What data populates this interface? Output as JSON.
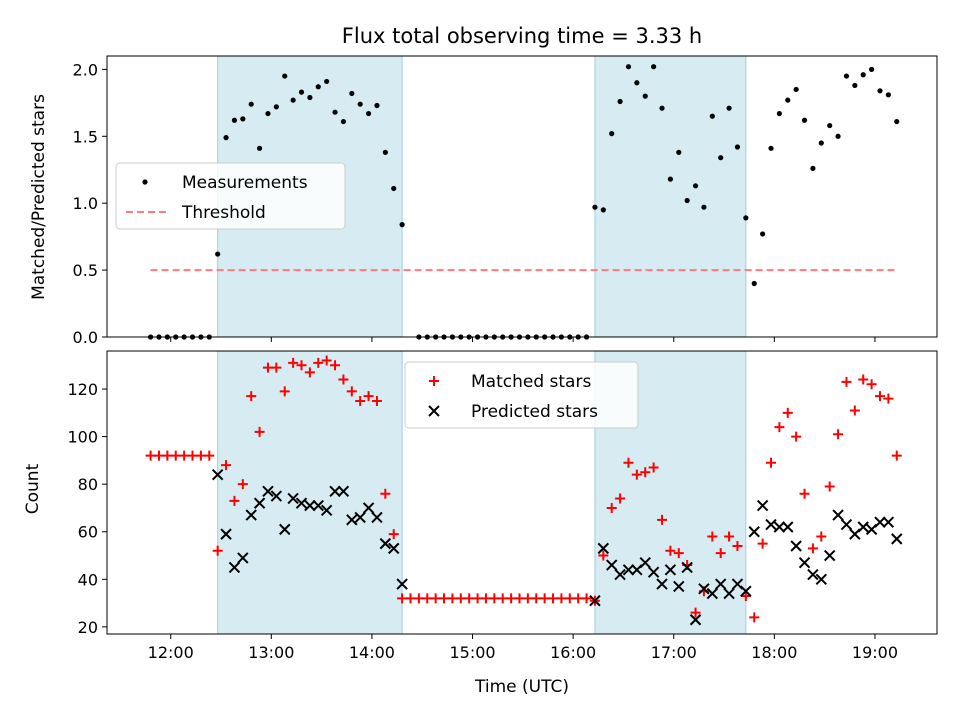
{
  "chart_data": [
    {
      "type": "scatter",
      "title": "Flux total observing time = 3.33 h",
      "xlabel": "",
      "ylabel": "Matched/Predicted stars",
      "xlim": [
        "11:22",
        "19:37"
      ],
      "ylim": [
        0,
        2.1
      ],
      "yticks": [
        "0.0",
        "0.5",
        "1.0",
        "1.5",
        "2.0"
      ],
      "grid": false,
      "legend_position": "center-left",
      "shaded_intervals": [
        [
          "12:28",
          "14:18"
        ],
        [
          "16:13",
          "17:43"
        ]
      ],
      "series": [
        {
          "name": "Measurements",
          "marker": "dot",
          "color": "#000000",
          "points": [
            [
              "11:48",
              0.0
            ],
            [
              "11:53",
              0.0
            ],
            [
              "11:58",
              0.0
            ],
            [
              "12:03",
              0.0
            ],
            [
              "12:08",
              0.0
            ],
            [
              "12:13",
              0.0
            ],
            [
              "12:18",
              0.0
            ],
            [
              "12:23",
              0.0
            ],
            [
              "12:28",
              0.62
            ],
            [
              "12:33",
              1.49
            ],
            [
              "12:38",
              1.62
            ],
            [
              "12:43",
              1.63
            ],
            [
              "12:48",
              1.74
            ],
            [
              "12:53",
              1.41
            ],
            [
              "12:58",
              1.67
            ],
            [
              "13:03",
              1.72
            ],
            [
              "13:08",
              1.95
            ],
            [
              "13:13",
              1.77
            ],
            [
              "13:18",
              1.83
            ],
            [
              "13:23",
              1.79
            ],
            [
              "13:28",
              1.87
            ],
            [
              "13:33",
              1.91
            ],
            [
              "13:38",
              1.68
            ],
            [
              "13:43",
              1.61
            ],
            [
              "13:48",
              1.82
            ],
            [
              "13:53",
              1.74
            ],
            [
              "13:58",
              1.67
            ],
            [
              "14:03",
              1.73
            ],
            [
              "14:08",
              1.38
            ],
            [
              "14:13",
              1.11
            ],
            [
              "14:18",
              0.84
            ],
            [
              "14:28",
              0.0
            ],
            [
              "14:33",
              0.0
            ],
            [
              "14:38",
              0.0
            ],
            [
              "14:43",
              0.0
            ],
            [
              "14:48",
              0.0
            ],
            [
              "14:53",
              0.0
            ],
            [
              "14:58",
              0.0
            ],
            [
              "15:03",
              0.0
            ],
            [
              "15:08",
              0.0
            ],
            [
              "15:13",
              0.0
            ],
            [
              "15:18",
              0.0
            ],
            [
              "15:23",
              0.0
            ],
            [
              "15:28",
              0.0
            ],
            [
              "15:33",
              0.0
            ],
            [
              "15:38",
              0.0
            ],
            [
              "15:43",
              0.0
            ],
            [
              "15:48",
              0.0
            ],
            [
              "15:53",
              0.0
            ],
            [
              "15:58",
              0.0
            ],
            [
              "16:03",
              0.0
            ],
            [
              "16:08",
              0.0
            ],
            [
              "16:13",
              0.97
            ],
            [
              "16:18",
              0.95
            ],
            [
              "16:23",
              1.52
            ],
            [
              "16:28",
              1.76
            ],
            [
              "16:33",
              2.02
            ],
            [
              "16:38",
              1.9
            ],
            [
              "16:43",
              1.8
            ],
            [
              "16:48",
              2.02
            ],
            [
              "16:53",
              1.71
            ],
            [
              "16:58",
              1.18
            ],
            [
              "17:03",
              1.38
            ],
            [
              "17:08",
              1.02
            ],
            [
              "17:13",
              1.13
            ],
            [
              "17:18",
              0.97
            ],
            [
              "17:23",
              1.65
            ],
            [
              "17:28",
              1.34
            ],
            [
              "17:33",
              1.71
            ],
            [
              "17:38",
              1.42
            ],
            [
              "17:43",
              0.89
            ],
            [
              "17:48",
              0.4
            ],
            [
              "17:53",
              0.77
            ],
            [
              "17:58",
              1.41
            ],
            [
              "18:03",
              1.67
            ],
            [
              "18:08",
              1.77
            ],
            [
              "18:13",
              1.85
            ],
            [
              "18:18",
              1.62
            ],
            [
              "18:23",
              1.26
            ],
            [
              "18:28",
              1.45
            ],
            [
              "18:33",
              1.58
            ],
            [
              "18:38",
              1.5
            ],
            [
              "18:43",
              1.95
            ],
            [
              "18:48",
              1.88
            ],
            [
              "18:53",
              1.96
            ],
            [
              "18:58",
              2.0
            ],
            [
              "19:03",
              1.84
            ],
            [
              "19:08",
              1.81
            ],
            [
              "19:13",
              1.61
            ]
          ]
        },
        {
          "name": "Threshold",
          "style": "dashed",
          "color": "#ff7b7b",
          "points": [
            [
              "11:48",
              0.5
            ],
            [
              "19:13",
              0.5
            ]
          ]
        }
      ]
    },
    {
      "type": "scatter",
      "title": "",
      "xlabel": "Time (UTC)",
      "ylabel": "Count",
      "xlim": [
        "11:22",
        "19:37"
      ],
      "xticks": [
        "12:00",
        "13:00",
        "14:00",
        "15:00",
        "16:00",
        "17:00",
        "18:00",
        "19:00"
      ],
      "ylim": [
        17,
        136
      ],
      "yticks": [
        "20",
        "40",
        "60",
        "80",
        "100",
        "120"
      ],
      "grid": false,
      "legend_position": "top-center",
      "shaded_intervals": [
        [
          "12:28",
          "14:18"
        ],
        [
          "16:13",
          "17:43"
        ]
      ],
      "series": [
        {
          "name": "Matched stars",
          "marker": "plus",
          "color": "#ff0000",
          "points": [
            [
              "11:48",
              92
            ],
            [
              "11:53",
              92
            ],
            [
              "11:58",
              92
            ],
            [
              "12:03",
              92
            ],
            [
              "12:08",
              92
            ],
            [
              "12:13",
              92
            ],
            [
              "12:18",
              92
            ],
            [
              "12:23",
              92
            ],
            [
              "12:28",
              52
            ],
            [
              "12:33",
              88
            ],
            [
              "12:38",
              73
            ],
            [
              "12:43",
              80
            ],
            [
              "12:48",
              117
            ],
            [
              "12:53",
              102
            ],
            [
              "12:58",
              129
            ],
            [
              "13:03",
              129
            ],
            [
              "13:08",
              119
            ],
            [
              "13:13",
              131
            ],
            [
              "13:18",
              130
            ],
            [
              "13:23",
              127
            ],
            [
              "13:28",
              131
            ],
            [
              "13:33",
              132
            ],
            [
              "13:38",
              130
            ],
            [
              "13:43",
              124
            ],
            [
              "13:48",
              119
            ],
            [
              "13:53",
              115
            ],
            [
              "13:58",
              117
            ],
            [
              "14:03",
              115
            ],
            [
              "14:08",
              76
            ],
            [
              "14:13",
              59
            ],
            [
              "14:18",
              32
            ],
            [
              "14:23",
              32
            ],
            [
              "14:28",
              32
            ],
            [
              "14:33",
              32
            ],
            [
              "14:38",
              32
            ],
            [
              "14:43",
              32
            ],
            [
              "14:48",
              32
            ],
            [
              "14:53",
              32
            ],
            [
              "14:58",
              32
            ],
            [
              "15:03",
              32
            ],
            [
              "15:08",
              32
            ],
            [
              "15:13",
              32
            ],
            [
              "15:18",
              32
            ],
            [
              "15:23",
              32
            ],
            [
              "15:28",
              32
            ],
            [
              "15:33",
              32
            ],
            [
              "15:38",
              32
            ],
            [
              "15:43",
              32
            ],
            [
              "15:48",
              32
            ],
            [
              "15:53",
              32
            ],
            [
              "15:58",
              32
            ],
            [
              "16:03",
              32
            ],
            [
              "16:08",
              32
            ],
            [
              "16:13",
              31
            ],
            [
              "16:18",
              50
            ],
            [
              "16:23",
              70
            ],
            [
              "16:28",
              74
            ],
            [
              "16:33",
              89
            ],
            [
              "16:38",
              84
            ],
            [
              "16:43",
              85
            ],
            [
              "16:48",
              87
            ],
            [
              "16:53",
              65
            ],
            [
              "16:58",
              52
            ],
            [
              "17:03",
              51
            ],
            [
              "17:08",
              46
            ],
            [
              "17:13",
              26
            ],
            [
              "17:18",
              35
            ],
            [
              "17:23",
              58
            ],
            [
              "17:28",
              51
            ],
            [
              "17:33",
              58
            ],
            [
              "17:38",
              54
            ],
            [
              "17:43",
              33
            ],
            [
              "17:48",
              24
            ],
            [
              "17:53",
              55
            ],
            [
              "17:58",
              89
            ],
            [
              "18:03",
              104
            ],
            [
              "18:08",
              110
            ],
            [
              "18:13",
              100
            ],
            [
              "18:18",
              76
            ],
            [
              "18:23",
              53
            ],
            [
              "18:28",
              58
            ],
            [
              "18:33",
              79
            ],
            [
              "18:38",
              101
            ],
            [
              "18:43",
              123
            ],
            [
              "18:48",
              111
            ],
            [
              "18:53",
              124
            ],
            [
              "18:58",
              122
            ],
            [
              "19:03",
              117
            ],
            [
              "19:08",
              116
            ],
            [
              "19:13",
              92
            ]
          ]
        },
        {
          "name": "Predicted stars",
          "marker": "x",
          "color": "#000000",
          "points": [
            [
              "12:28",
              84
            ],
            [
              "12:33",
              59
            ],
            [
              "12:38",
              45
            ],
            [
              "12:43",
              49
            ],
            [
              "12:48",
              67
            ],
            [
              "12:53",
              72
            ],
            [
              "12:58",
              77
            ],
            [
              "13:03",
              75
            ],
            [
              "13:08",
              61
            ],
            [
              "13:13",
              74
            ],
            [
              "13:18",
              72
            ],
            [
              "13:23",
              71
            ],
            [
              "13:28",
              71
            ],
            [
              "13:33",
              69
            ],
            [
              "13:38",
              77
            ],
            [
              "13:43",
              77
            ],
            [
              "13:48",
              65
            ],
            [
              "13:53",
              66
            ],
            [
              "13:58",
              70
            ],
            [
              "14:03",
              66
            ],
            [
              "14:08",
              55
            ],
            [
              "14:13",
              53
            ],
            [
              "14:18",
              38
            ],
            [
              "16:13",
              31
            ],
            [
              "16:18",
              53
            ],
            [
              "16:23",
              46
            ],
            [
              "16:28",
              42
            ],
            [
              "16:33",
              44
            ],
            [
              "16:38",
              44
            ],
            [
              "16:43",
              47
            ],
            [
              "16:48",
              43
            ],
            [
              "16:53",
              38
            ],
            [
              "16:58",
              44
            ],
            [
              "17:03",
              37
            ],
            [
              "17:08",
              45
            ],
            [
              "17:13",
              23
            ],
            [
              "17:18",
              36
            ],
            [
              "17:23",
              34
            ],
            [
              "17:28",
              38
            ],
            [
              "17:33",
              34
            ],
            [
              "17:38",
              38
            ],
            [
              "17:43",
              35
            ],
            [
              "17:48",
              60
            ],
            [
              "17:53",
              71
            ],
            [
              "17:58",
              63
            ],
            [
              "18:03",
              62
            ],
            [
              "18:08",
              62
            ],
            [
              "18:13",
              54
            ],
            [
              "18:18",
              47
            ],
            [
              "18:23",
              42
            ],
            [
              "18:28",
              40
            ],
            [
              "18:33",
              50
            ],
            [
              "18:38",
              67
            ],
            [
              "18:43",
              63
            ],
            [
              "18:48",
              59
            ],
            [
              "18:53",
              62
            ],
            [
              "18:58",
              61
            ],
            [
              "19:03",
              64
            ],
            [
              "19:08",
              64
            ],
            [
              "19:13",
              57
            ]
          ]
        }
      ]
    }
  ]
}
